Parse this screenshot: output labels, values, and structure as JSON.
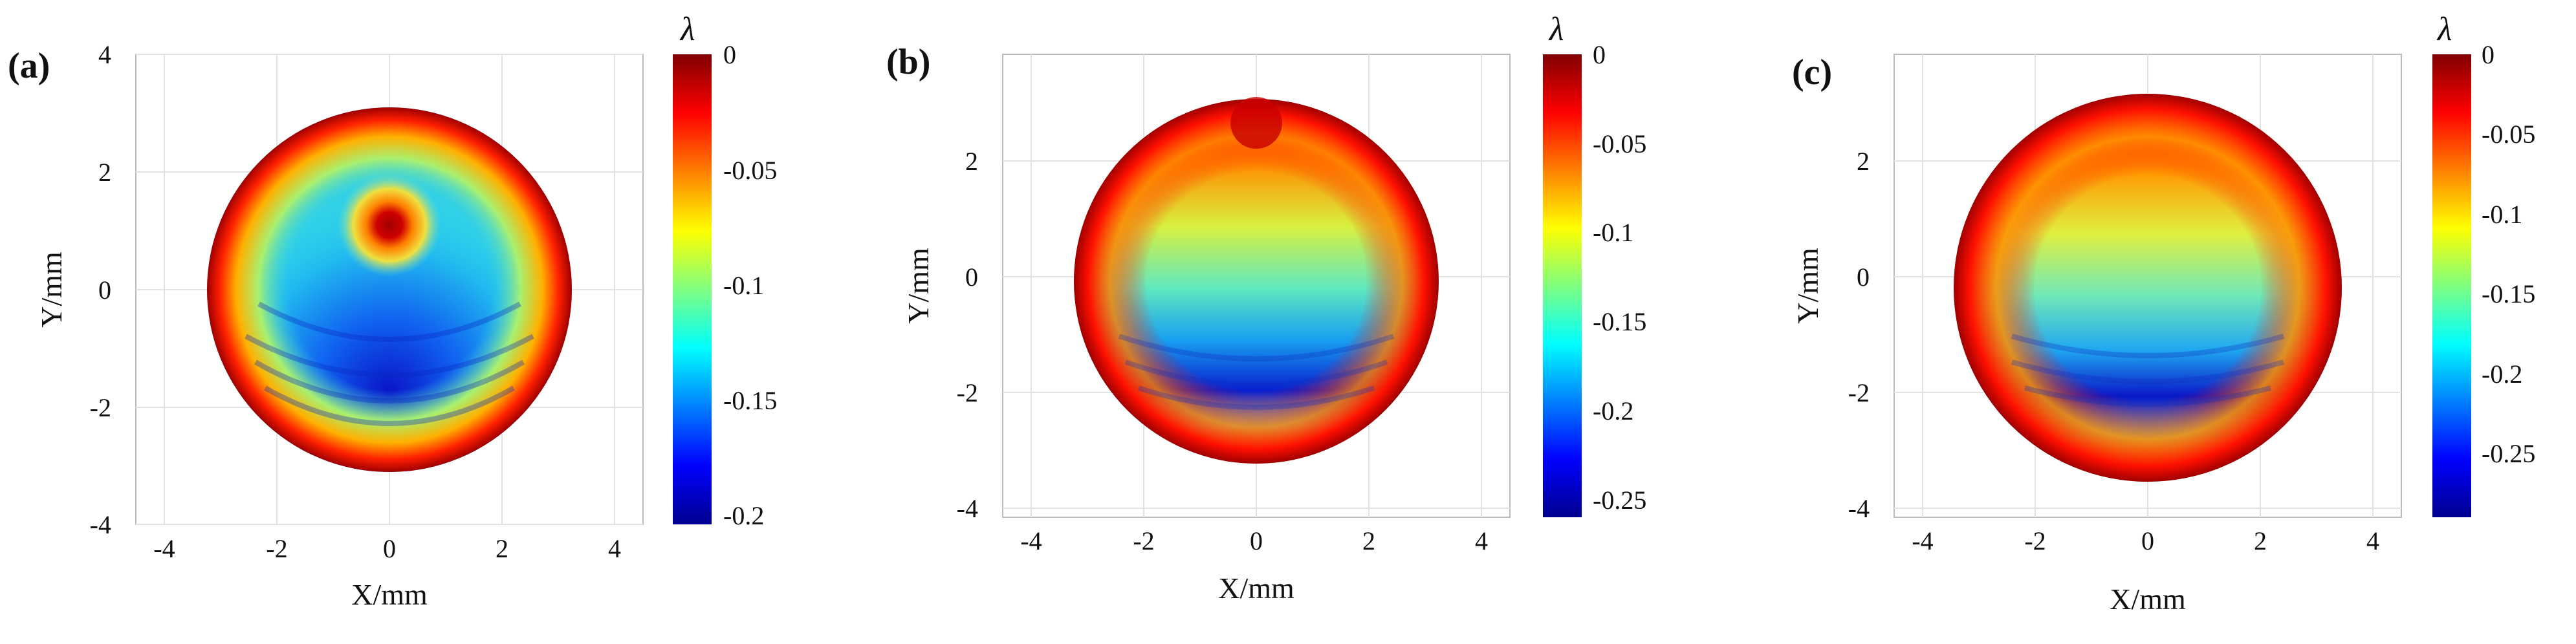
{
  "figure": {
    "panels": [
      {
        "label": "(a)"
      },
      {
        "label": "(b)"
      },
      {
        "label": "(c)"
      }
    ]
  },
  "chart_data": [
    {
      "type": "heatmap",
      "panel": "(a)",
      "xlabel": "X/mm",
      "ylabel": "Y/mm",
      "colorbar_label": "λ",
      "xlim": [
        -4.5,
        4.5
      ],
      "ylim": [
        -4,
        4
      ],
      "xticks": [
        -4,
        -2,
        0,
        2,
        4
      ],
      "yticks": [
        -4,
        -2,
        0,
        2,
        4
      ],
      "grid": true,
      "aperture_radius": 3.1,
      "colorbar_range": [
        -0.2,
        0
      ],
      "colorbar_ticks": [
        0,
        -0.05,
        -0.1,
        -0.15,
        -0.2
      ],
      "colorbar_tick_labels": [
        "0",
        "-0.05",
        "-0.1",
        "-0.15",
        "-0.2"
      ],
      "colormap": "jet",
      "features": {
        "min_value": -0.2,
        "min_location": [
          0,
          -1.8
        ],
        "local_max_value": 0,
        "local_max_location": [
          0,
          1.1
        ],
        "edge_value": 0
      }
    },
    {
      "type": "heatmap",
      "panel": "(b)",
      "xlabel": "X/mm",
      "ylabel": "Y/mm",
      "colorbar_label": "λ",
      "xlim": [
        -4.5,
        4.5
      ],
      "ylim": [
        -4.2,
        3.9
      ],
      "xticks": [
        -4,
        -2,
        0,
        2,
        4
      ],
      "yticks": [
        -4,
        -2,
        0,
        2
      ],
      "grid": true,
      "aperture_radius": 3.1,
      "colorbar_range": [
        -0.26,
        0
      ],
      "colorbar_ticks": [
        0,
        -0.05,
        -0.1,
        -0.15,
        -0.2,
        -0.25
      ],
      "colorbar_tick_labels": [
        "0",
        "-0.05",
        "-0.1",
        "-0.15",
        "-0.2",
        "-0.25"
      ],
      "colormap": "jet",
      "features": {
        "min_value": -0.26,
        "min_location": [
          0,
          -1.9
        ],
        "edge_value": 0
      }
    },
    {
      "type": "heatmap",
      "panel": "(c)",
      "xlabel": "X/mm",
      "ylabel": "Y/mm",
      "colorbar_label": "λ",
      "xlim": [
        -4.5,
        4.5
      ],
      "ylim": [
        -4.2,
        3.9
      ],
      "xticks": [
        -4,
        -2,
        0,
        2,
        4
      ],
      "yticks": [
        -4,
        -2,
        0,
        2
      ],
      "grid": true,
      "aperture_radius": 3.3,
      "colorbar_range": [
        -0.29,
        0
      ],
      "colorbar_ticks": [
        0,
        -0.05,
        -0.1,
        -0.15,
        -0.2,
        -0.25
      ],
      "colorbar_tick_labels": [
        "0",
        "-0.05",
        "-0.1",
        "-0.15",
        "-0.2",
        "-0.25"
      ],
      "colormap": "jet",
      "features": {
        "min_value": -0.29,
        "min_location": [
          0,
          -1.8
        ],
        "edge_value": 0
      }
    }
  ]
}
